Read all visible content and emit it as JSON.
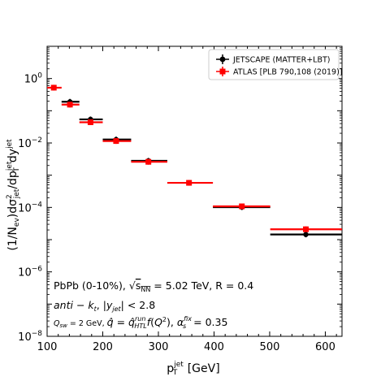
{
  "chart_data": {
    "type": "scatter",
    "xlabel": "p_T^jet [GeV]",
    "ylabel": "(1/N_ev) dσ²_jet/dp_T^jet dy^jet",
    "xlim": [
      100,
      630
    ],
    "ylim": [
      1e-08,
      10
    ],
    "y_scale": "log",
    "grid": false,
    "legend_position": "top-right",
    "x_ticks": [
      "100",
      "200",
      "300",
      "400",
      "500",
      "600"
    ],
    "y_ticks": [
      "10^0",
      "10^-2",
      "10^-4",
      "10^-6",
      "10^-8"
    ],
    "series": [
      {
        "name": "JETSCAPE (MATTER+LBT)",
        "color": "#000000",
        "marker": "circle",
        "points": [
          {
            "x": 141,
            "xlow": 126,
            "xhigh": 158,
            "y": 0.19
          },
          {
            "x": 178,
            "xlow": 158,
            "xhigh": 200,
            "y": 0.054
          },
          {
            "x": 224,
            "xlow": 200,
            "xhigh": 251,
            "y": 0.0128
          },
          {
            "x": 282,
            "xlow": 251,
            "xhigh": 316,
            "y": 0.0028
          },
          {
            "x": 450,
            "xlow": 398,
            "xhigh": 501,
            "y": 0.000102
          },
          {
            "x": 565,
            "xlow": 501,
            "xhigh": 630,
            "y": 1.45e-05
          }
        ]
      },
      {
        "name": "ATLAS [PLB 790,108 (2019)]",
        "color": "#ff0000",
        "marker": "square",
        "points": [
          {
            "x": 112,
            "xlow": 100,
            "xhigh": 126,
            "y": 0.52
          },
          {
            "x": 141,
            "xlow": 126,
            "xhigh": 158,
            "y": 0.155
          },
          {
            "x": 178,
            "xlow": 158,
            "xhigh": 200,
            "y": 0.044
          },
          {
            "x": 224,
            "xlow": 200,
            "xhigh": 251,
            "y": 0.0115
          },
          {
            "x": 282,
            "xlow": 251,
            "xhigh": 316,
            "y": 0.0026
          },
          {
            "x": 355,
            "xlow": 316,
            "xhigh": 398,
            "y": 0.00058
          },
          {
            "x": 450,
            "xlow": 398,
            "xhigh": 501,
            "y": 0.000108
          },
          {
            "x": 565,
            "xlow": 501,
            "xhigh": 630,
            "y": 2.1e-05
          }
        ]
      }
    ],
    "annotations": [
      "PbPb (0-10%), √s_NN = 5.02 TeV, R = 0.4",
      "anti − k_t, |y_jet| < 2.8",
      "Q_sw = 2 GeV, q̂ = q̂_HTL^run f(Q²), α_s^fix = 0.35"
    ]
  }
}
